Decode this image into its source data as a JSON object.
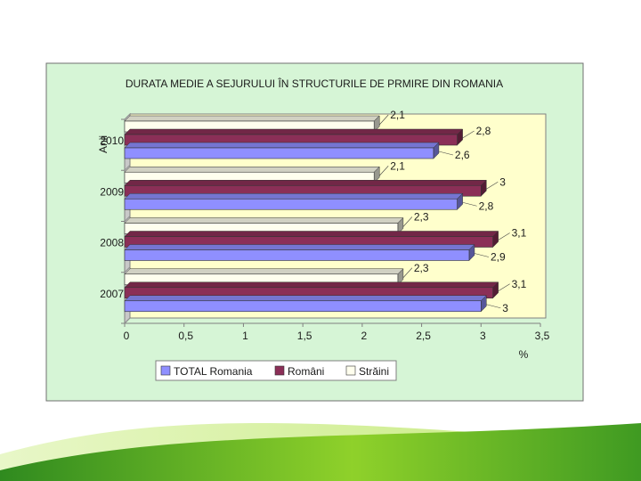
{
  "chart_data": {
    "type": "bar",
    "orientation": "horizontal",
    "title": "DURATA MEDIE A SEJURULUI ÎN STRUCTURILE DE PRMIRE DIN ROMANIA",
    "ylabel": "Anii",
    "xlabel": "%",
    "categories": [
      "2010",
      "2009",
      "2008",
      "2007"
    ],
    "xlim": [
      0,
      3.5
    ],
    "xticks": [
      0,
      0.5,
      1,
      1.5,
      2,
      2.5,
      3,
      3.5
    ],
    "xtick_labels": [
      "0",
      "0,5",
      "1",
      "1,5",
      "2",
      "2,5",
      "3",
      "3,5"
    ],
    "series": [
      {
        "name": "Străini",
        "color": "#ffffee",
        "values": [
          2.1,
          2.1,
          2.3,
          2.3
        ],
        "labels": [
          "2,1",
          "2,1",
          "2,3",
          "2,3"
        ]
      },
      {
        "name": "Români",
        "color": "#8b2f57",
        "values": [
          2.8,
          3,
          3.1,
          3.1
        ],
        "labels": [
          "2,8",
          "3",
          "3,1",
          "3,1"
        ]
      },
      {
        "name": "TOTAL Romania",
        "color": "#8f8fff",
        "values": [
          2.6,
          2.8,
          2.9,
          3
        ],
        "labels": [
          "2,6",
          "2,8",
          "2,9",
          "3"
        ]
      }
    ],
    "legend_order": [
      "TOTAL Romania",
      "Români",
      "Străini"
    ],
    "legend_placement": "bottom",
    "grid": false,
    "chart_background": "#d6f5d6",
    "plot_background": "#ffffcc"
  }
}
